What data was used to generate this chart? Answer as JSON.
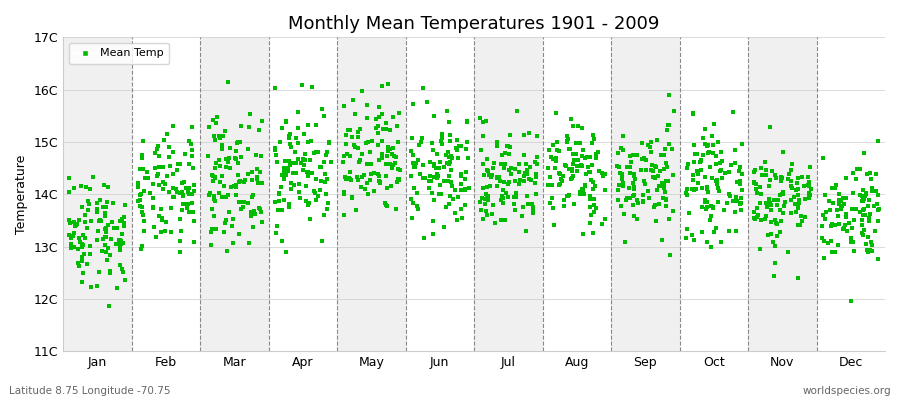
{
  "title": "Monthly Mean Temperatures 1901 - 2009",
  "ylabel": "Temperature",
  "ylim": [
    11,
    17
  ],
  "yticks": [
    11,
    12,
    13,
    14,
    15,
    16,
    17
  ],
  "ytick_labels": [
    "11C",
    "12C",
    "13C",
    "14C",
    "15C",
    "16C",
    "17C"
  ],
  "months": [
    "Jan",
    "Feb",
    "Mar",
    "Apr",
    "May",
    "Jun",
    "Jul",
    "Aug",
    "Sep",
    "Oct",
    "Nov",
    "Dec"
  ],
  "marker_color": "#00bb00",
  "marker": "s",
  "marker_size": 2.5,
  "legend_label": "Mean Temp",
  "bottom_left": "Latitude 8.75 Longitude -70.75",
  "bottom_right": "worldspecies.org",
  "bg_color": "#ffffff",
  "plot_bg_color": "#ffffff",
  "band_even_color": "#f0f0f0",
  "band_odd_color": "#ffffff",
  "vline_color": "#888888",
  "years": 109,
  "seed": 42,
  "monthly_means": [
    13.3,
    14.0,
    14.3,
    14.5,
    14.6,
    14.4,
    14.3,
    14.4,
    14.3,
    14.2,
    13.9,
    13.7
  ],
  "monthly_stds": [
    0.55,
    0.55,
    0.6,
    0.6,
    0.6,
    0.55,
    0.5,
    0.5,
    0.5,
    0.5,
    0.5,
    0.5
  ]
}
